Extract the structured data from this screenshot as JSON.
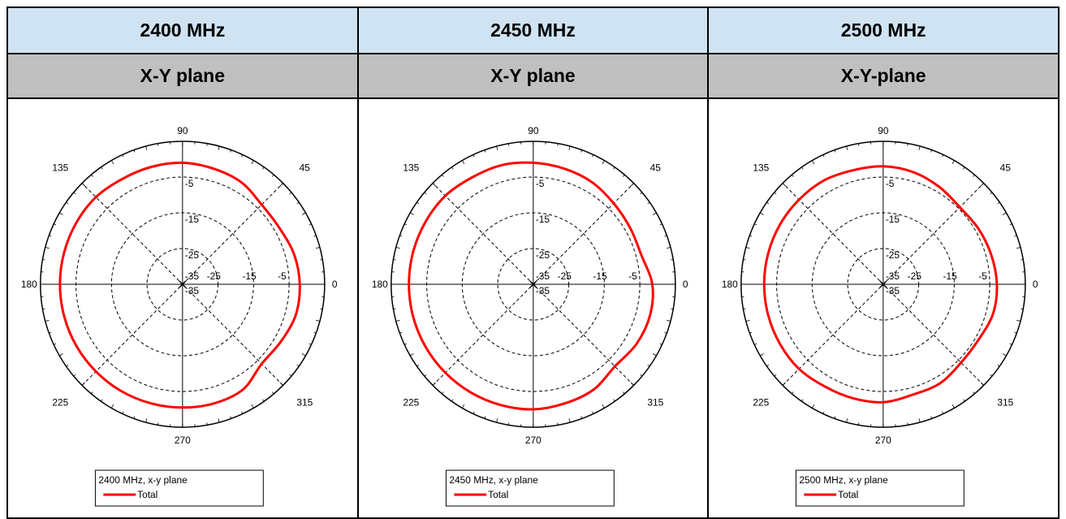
{
  "columns": [
    {
      "frequency_header": "2400 MHz",
      "plane_header": "X-Y plane"
    },
    {
      "frequency_header": "2450 MHz",
      "plane_header": "X-Y plane"
    },
    {
      "frequency_header": "2500 MHz",
      "plane_header": "X-Y-plane"
    }
  ],
  "colors": {
    "header_bg": "#cfe3f3",
    "subheader_bg": "#c0c0c0",
    "trace": "#ff0000",
    "grid": "#000000"
  },
  "chart_data": [
    {
      "type": "polar",
      "title": "",
      "angle_labels": [
        "0",
        "45",
        "90",
        "135",
        "180",
        "225",
        "270",
        "315"
      ],
      "radial_labels": [
        "-5",
        "-15",
        "-25",
        "-35"
      ],
      "horizontal_labels": [
        "-35",
        "-25",
        "-15",
        "-5"
      ],
      "rlim": [
        -35,
        5
      ],
      "grid": true,
      "legend": {
        "title": "2400 MHz, x-y plane",
        "entries": [
          "Total"
        ],
        "position": "bottom"
      },
      "series": [
        {
          "name": "Total",
          "theta_deg": [
            0,
            15,
            30,
            45,
            60,
            75,
            90,
            105,
            120,
            135,
            150,
            165,
            180,
            195,
            210,
            225,
            240,
            255,
            270,
            285,
            300,
            315,
            330,
            345
          ],
          "r_db": [
            -2,
            -2.5,
            -3.5,
            -3.5,
            -2,
            -1.5,
            -1,
            -1,
            -1,
            -0.5,
            -0.5,
            -0.5,
            -0.5,
            -0.5,
            -0.5,
            -0.5,
            -0.5,
            -0.5,
            -0.5,
            -0.5,
            -1,
            -3.5,
            -3,
            -2
          ]
        }
      ]
    },
    {
      "type": "polar",
      "title": "",
      "angle_labels": [
        "0",
        "45",
        "90",
        "135",
        "180",
        "225",
        "270",
        "315"
      ],
      "radial_labels": [
        "-5",
        "-15",
        "-25",
        "-35"
      ],
      "horizontal_labels": [
        "-35",
        "-25",
        "-15",
        "-5"
      ],
      "rlim": [
        -35,
        5
      ],
      "grid": true,
      "legend": {
        "title": "2450 MHz, x-y plane",
        "entries": [
          "Total"
        ],
        "position": "bottom"
      },
      "series": [
        {
          "name": "Total",
          "theta_deg": [
            0,
            15,
            30,
            45,
            60,
            75,
            90,
            105,
            120,
            135,
            150,
            165,
            180,
            195,
            210,
            225,
            240,
            255,
            270,
            285,
            300,
            315,
            330,
            345
          ],
          "r_db": [
            -1.5,
            -3.5,
            -3.5,
            -3,
            -2,
            -1.5,
            -1,
            -0.5,
            -0.5,
            0,
            0,
            0,
            0,
            0,
            0,
            0,
            0,
            0,
            0,
            -0.5,
            -1,
            -2.5,
            -1.5,
            -1
          ]
        }
      ]
    },
    {
      "type": "polar",
      "title": "",
      "angle_labels": [
        "0",
        "45",
        "90",
        "135",
        "180",
        "225",
        "270",
        "315"
      ],
      "radial_labels": [
        "-5",
        "-15",
        "-25",
        "-35"
      ],
      "horizontal_labels": [
        "-35",
        "-25",
        "-15",
        "-5"
      ],
      "rlim": [
        -35,
        5
      ],
      "grid": true,
      "legend": {
        "title": "2500 MHz, x-y plane",
        "entries": [
          "Total"
        ],
        "position": "bottom"
      },
      "series": [
        {
          "name": "Total",
          "theta_deg": [
            0,
            15,
            30,
            45,
            60,
            75,
            90,
            105,
            120,
            135,
            150,
            165,
            180,
            195,
            210,
            225,
            240,
            255,
            270,
            285,
            300,
            315,
            330,
            345
          ],
          "r_db": [
            -3,
            -3.5,
            -4,
            -4.5,
            -3.5,
            -2.5,
            -2,
            -2,
            -1.5,
            -1.5,
            -1.5,
            -1.5,
            -1.5,
            -1.5,
            -1.5,
            -1.5,
            -2,
            -2,
            -2,
            -3,
            -3,
            -4,
            -4,
            -3
          ]
        }
      ]
    }
  ]
}
